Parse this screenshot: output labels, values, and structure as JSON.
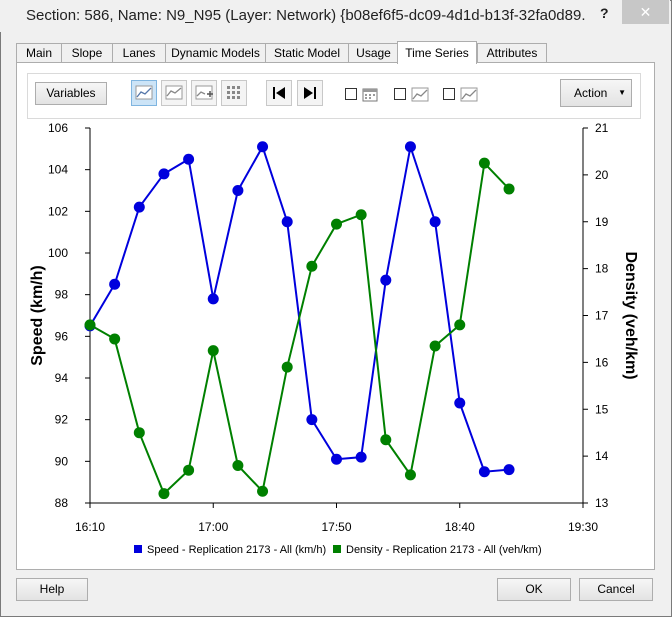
{
  "window": {
    "title": "Section: 586, Name: N9_N95 (Layer: Network) {b08ef6f5-dc09-4d1d-b13f-32fa0d89...",
    "help_glyph": "?",
    "close_glyph": "✕"
  },
  "tabs": [
    {
      "label": "Main"
    },
    {
      "label": "Slope"
    },
    {
      "label": "Lanes"
    },
    {
      "label": "Dynamic Models"
    },
    {
      "label": "Static Model"
    },
    {
      "label": "Usage"
    },
    {
      "label": "Time Series",
      "active": true
    },
    {
      "label": "Attributes"
    }
  ],
  "toolbar": {
    "variables_label": "Variables",
    "action_label": "Action",
    "action_arrow": "▼",
    "icons": [
      "line-chart-icon",
      "area-chart-icon",
      "add-chart-icon",
      "grid-icon",
      "skip-first-icon",
      "skip-last-icon"
    ],
    "checkboxes": [
      {
        "icon": "calendar-icon",
        "checked": false
      },
      {
        "icon": "line-chart-icon",
        "checked": false
      },
      {
        "icon": "line-chart-icon",
        "checked": false
      }
    ]
  },
  "chart_data": {
    "type": "line",
    "ylabel": "Speed (km/h)",
    "y2label": "Density (veh/km)",
    "x_ticks": [
      "16:10",
      "17:00",
      "17:50",
      "18:40",
      "19:30"
    ],
    "xlim": [
      "16:10",
      "19:30"
    ],
    "ylim": [
      88,
      106
    ],
    "y_ticks": [
      88,
      90,
      92,
      94,
      96,
      98,
      100,
      102,
      104,
      106
    ],
    "y2lim": [
      13,
      21
    ],
    "y2_ticks": [
      13,
      14,
      15,
      16,
      17,
      18,
      19,
      20,
      21
    ],
    "x": [
      "16:10",
      "16:20",
      "16:30",
      "16:40",
      "16:50",
      "17:00",
      "17:10",
      "17:20",
      "17:30",
      "17:40",
      "17:50",
      "18:00",
      "18:10",
      "18:20",
      "18:30",
      "18:40",
      "18:50",
      "19:00"
    ],
    "series": [
      {
        "name": "Speed - Replication 2173 - All (km/h)",
        "axis": "left",
        "color": "#0000dd",
        "values": [
          96.5,
          98.5,
          102.2,
          103.8,
          104.5,
          97.8,
          103.0,
          105.1,
          101.5,
          92.0,
          90.1,
          90.2,
          98.7,
          105.1,
          101.5,
          92.8,
          89.5,
          89.6
        ]
      },
      {
        "name": "Density - Replication 2173 - All (veh/km)",
        "axis": "right",
        "color": "#008000",
        "values": [
          16.8,
          16.5,
          14.5,
          13.2,
          13.7,
          16.25,
          13.8,
          13.25,
          15.9,
          18.05,
          18.95,
          19.15,
          14.35,
          13.6,
          16.35,
          16.8,
          20.25,
          19.7
        ]
      }
    ],
    "legend_position": "bottom"
  },
  "footer": {
    "help_label": "Help",
    "ok_label": "OK",
    "cancel_label": "Cancel"
  }
}
